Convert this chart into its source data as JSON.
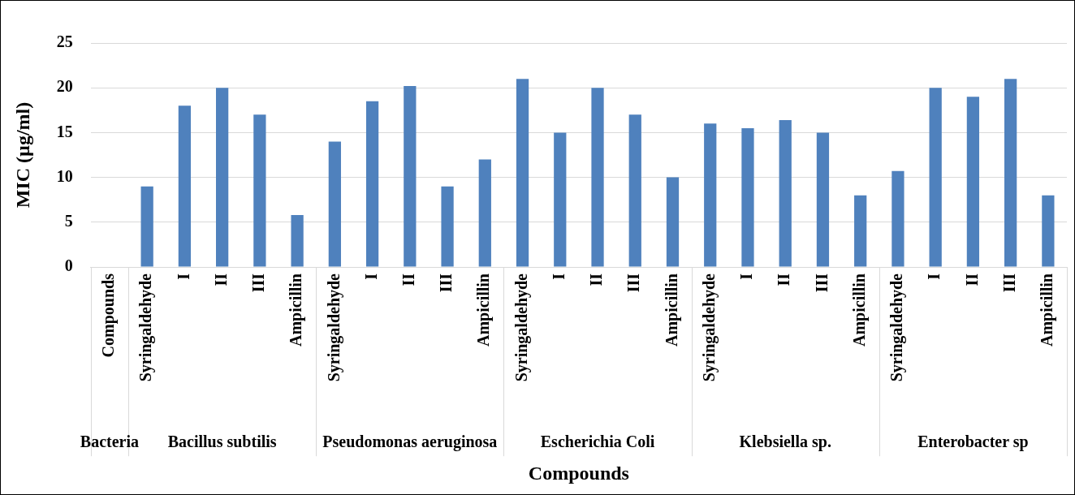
{
  "chart_data": {
    "type": "bar",
    "xlabel": "Compounds",
    "ylabel": "MIC (µg/ml)",
    "categories": [
      "Compounds",
      "Syringaldehyde",
      "I",
      "II",
      "III",
      "Ampicillin",
      "Syringaldehyde",
      "I",
      "II",
      "III",
      "Ampicillin",
      "Syringaldehyde",
      "I",
      "II",
      "III",
      "Ampicillin",
      "Syringaldehyde",
      "I",
      "II",
      "III",
      "Ampicillin",
      "Syringaldehyde",
      "I",
      "II",
      "III",
      "Ampicillin"
    ],
    "values": [
      null,
      9,
      18,
      20,
      17,
      5.8,
      14,
      18.5,
      20.2,
      9,
      12,
      21,
      15,
      20,
      17,
      10,
      16,
      15.5,
      16.4,
      15,
      8,
      10.7,
      20,
      19,
      21,
      8
    ],
    "color": "#4f81bd",
    "ylim": [
      0,
      25
    ],
    "yticks": [
      0,
      5,
      10,
      15,
      20,
      25
    ],
    "grid": "y",
    "annotations": [
      "Bacteria",
      "Bacillus subtilis",
      "Pseudomonas aeruginosa",
      "Escherichia Coli",
      "Klebsiella sp.",
      "Enterobacter sp"
    ]
  }
}
